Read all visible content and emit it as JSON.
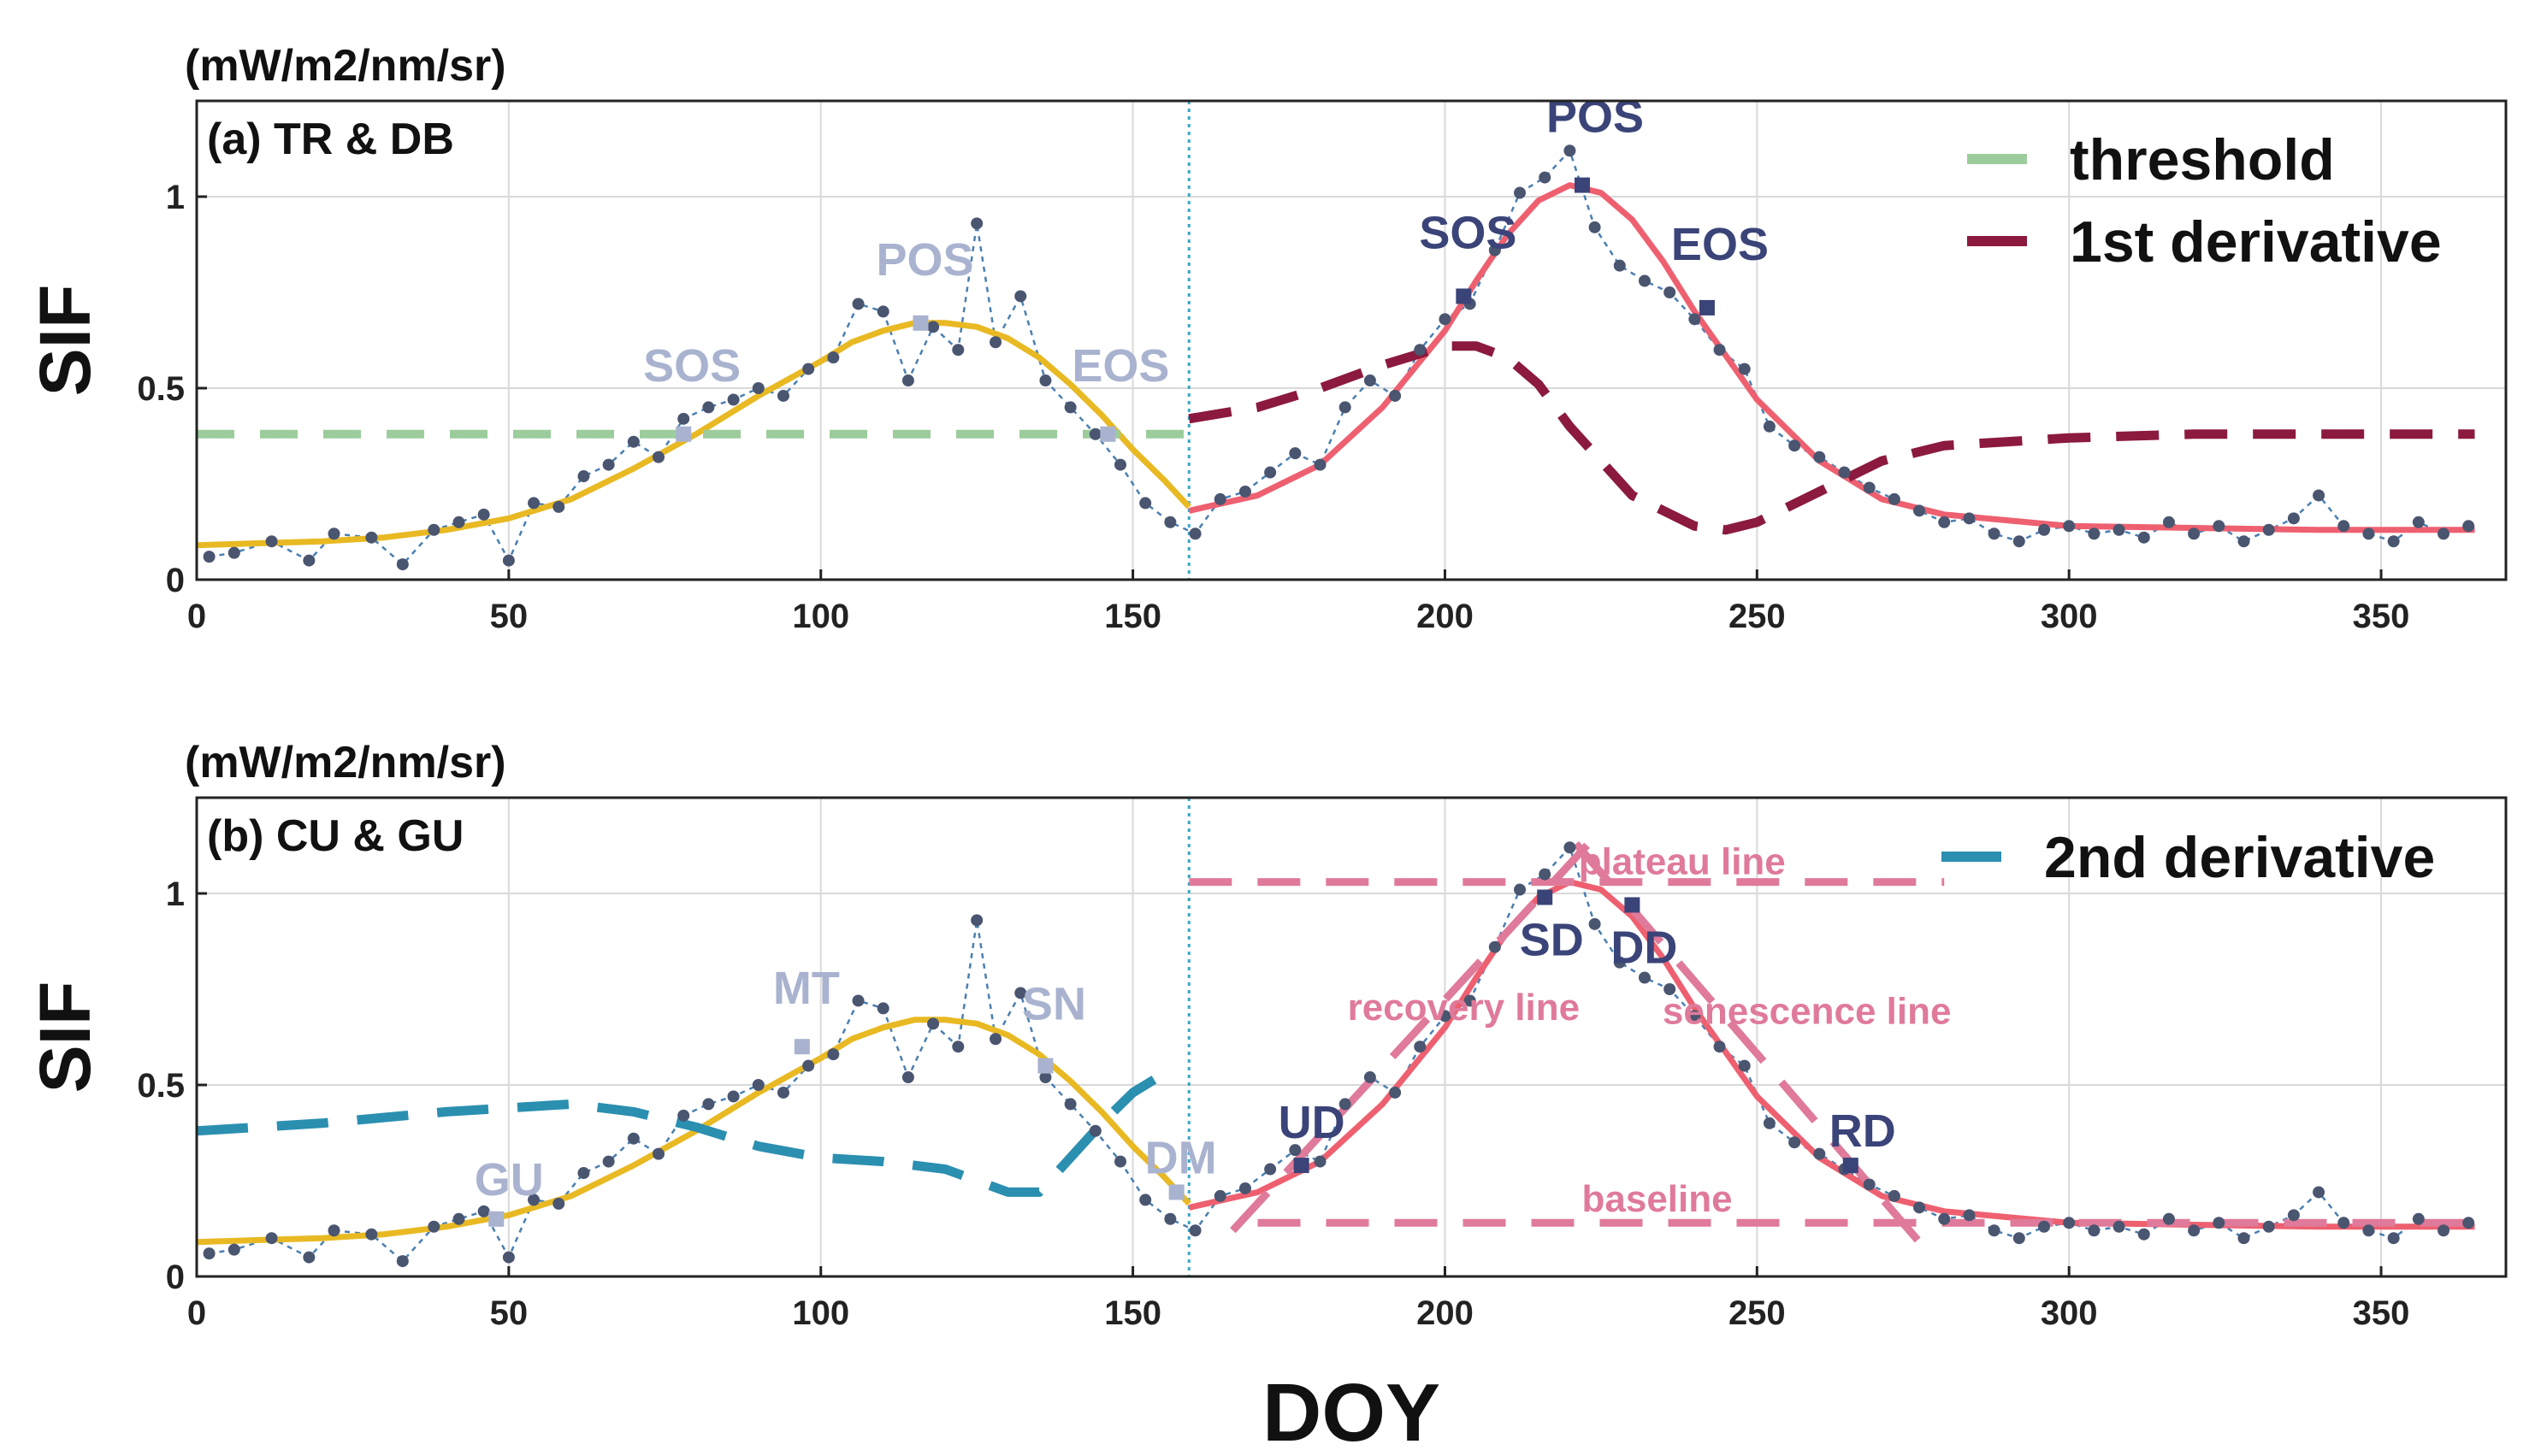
{
  "chart_data": [
    {
      "type": "line",
      "panel_label": "(a) TR & DB",
      "unit_label": "(mW/m2/nm/sr)",
      "ylabel": "SIF",
      "xlabel": "",
      "xlim": [
        0,
        370
      ],
      "ylim": [
        0,
        1.25
      ],
      "xticks": [
        0,
        50,
        100,
        150,
        200,
        250,
        300,
        350
      ],
      "yticks": [
        0,
        0.5,
        1
      ],
      "ytick_labels": [
        "0",
        "0.5",
        "1"
      ],
      "divider_x": 159,
      "legend": [
        {
          "label": "threshold",
          "color": "#9ccc9c",
          "style": "dashed"
        },
        {
          "label": "1st derivative",
          "color": "#8b1a3e",
          "style": "dashed"
        }
      ],
      "series": [
        {
          "name": "fit-season1",
          "color": "#e8b923",
          "x": [
            0,
            10,
            20,
            30,
            40,
            50,
            60,
            70,
            80,
            90,
            100,
            105,
            110,
            115,
            120,
            125,
            130,
            135,
            140,
            145,
            150,
            155,
            159
          ],
          "y": [
            0.09,
            0.095,
            0.1,
            0.11,
            0.13,
            0.16,
            0.21,
            0.29,
            0.38,
            0.48,
            0.57,
            0.62,
            0.65,
            0.67,
            0.67,
            0.66,
            0.63,
            0.58,
            0.51,
            0.43,
            0.34,
            0.26,
            0.19
          ]
        },
        {
          "name": "fit-season2",
          "color": "#ee6070",
          "x": [
            159,
            170,
            180,
            190,
            200,
            205,
            210,
            215,
            220,
            225,
            230,
            235,
            240,
            250,
            260,
            270,
            280,
            300,
            320,
            340,
            360,
            365
          ],
          "y": [
            0.18,
            0.22,
            0.3,
            0.45,
            0.65,
            0.78,
            0.9,
            0.99,
            1.03,
            1.01,
            0.94,
            0.83,
            0.7,
            0.47,
            0.31,
            0.21,
            0.17,
            0.14,
            0.135,
            0.13,
            0.13,
            0.13
          ]
        },
        {
          "name": "threshold",
          "color": "#9ccc9c",
          "x": [
            0,
            159
          ],
          "y": [
            0.38,
            0.38
          ]
        },
        {
          "name": "1st derivative",
          "color": "#8b1a3e",
          "x": [
            159,
            170,
            180,
            190,
            200,
            205,
            210,
            215,
            220,
            230,
            240,
            245,
            250,
            260,
            270,
            280,
            300,
            320,
            340,
            360,
            365
          ],
          "y": [
            0.42,
            0.45,
            0.5,
            0.56,
            0.61,
            0.61,
            0.58,
            0.51,
            0.4,
            0.22,
            0.14,
            0.13,
            0.15,
            0.23,
            0.31,
            0.35,
            0.37,
            0.38,
            0.38,
            0.38,
            0.38
          ]
        }
      ],
      "observed": {
        "x": [
          2,
          6,
          12,
          18,
          22,
          28,
          33,
          38,
          42,
          46,
          50,
          54,
          58,
          62,
          66,
          70,
          74,
          78,
          82,
          86,
          90,
          94,
          98,
          102,
          106,
          110,
          114,
          118,
          122,
          125,
          128,
          132,
          136,
          140,
          144,
          148,
          152,
          156,
          160,
          164,
          168,
          172,
          176,
          180,
          184,
          188,
          192,
          196,
          200,
          204,
          208,
          212,
          216,
          220,
          224,
          228,
          232,
          236,
          240,
          244,
          248,
          252,
          256,
          260,
          264,
          268,
          272,
          276,
          280,
          284,
          288,
          292,
          296,
          300,
          304,
          308,
          312,
          316,
          320,
          324,
          328,
          332,
          336,
          340,
          344,
          348,
          352,
          356,
          360,
          364
        ],
        "y": [
          0.06,
          0.07,
          0.1,
          0.05,
          0.12,
          0.11,
          0.04,
          0.13,
          0.15,
          0.17,
          0.05,
          0.2,
          0.19,
          0.27,
          0.3,
          0.36,
          0.32,
          0.42,
          0.45,
          0.47,
          0.5,
          0.48,
          0.55,
          0.58,
          0.72,
          0.7,
          0.52,
          0.66,
          0.6,
          0.93,
          0.62,
          0.74,
          0.52,
          0.45,
          0.38,
          0.3,
          0.2,
          0.15,
          0.12,
          0.21,
          0.23,
          0.28,
          0.33,
          0.3,
          0.45,
          0.52,
          0.48,
          0.6,
          0.68,
          0.72,
          0.86,
          1.01,
          1.05,
          1.12,
          0.92,
          0.82,
          0.78,
          0.75,
          0.68,
          0.6,
          0.55,
          0.4,
          0.35,
          0.32,
          0.28,
          0.24,
          0.21,
          0.18,
          0.15,
          0.16,
          0.12,
          0.1,
          0.13,
          0.14,
          0.12,
          0.13,
          0.11,
          0.15,
          0.12,
          0.14,
          0.1,
          0.13,
          0.16,
          0.22,
          0.14,
          0.12,
          0.1,
          0.15,
          0.12,
          0.14
        ]
      },
      "markers": [
        {
          "label": "SOS",
          "x": 78,
          "y": 0.38,
          "color": "#a9b3cf"
        },
        {
          "label": "POS",
          "x": 116,
          "y": 0.67,
          "color": "#a9b3cf"
        },
        {
          "label": "EOS",
          "x": 146,
          "y": 0.38,
          "color": "#a9b3cf"
        },
        {
          "label": "SOS",
          "x": 203,
          "y": 0.74,
          "color": "#3b4478"
        },
        {
          "label": "POS",
          "x": 222,
          "y": 1.03,
          "color": "#3b4478"
        },
        {
          "label": "EOS",
          "x": 242,
          "y": 0.71,
          "color": "#3b4478"
        }
      ]
    },
    {
      "type": "line",
      "panel_label": "(b) CU & GU",
      "unit_label": "(mW/m2/nm/sr)",
      "ylabel": "SIF",
      "xlabel": "DOY",
      "xlim": [
        0,
        370
      ],
      "ylim": [
        0,
        1.25
      ],
      "xticks": [
        0,
        50,
        100,
        150,
        200,
        250,
        300,
        350
      ],
      "yticks": [
        0,
        0.5,
        1
      ],
      "ytick_labels": [
        "0",
        "0.5",
        "1"
      ],
      "divider_x": 159,
      "legend": [
        {
          "label": "2nd derivative",
          "color": "#2b8fb0",
          "style": "dashed"
        }
      ],
      "series": [
        {
          "name": "fit-season1",
          "color": "#e8b923",
          "x": [
            0,
            10,
            20,
            30,
            40,
            50,
            60,
            70,
            80,
            90,
            100,
            105,
            110,
            115,
            120,
            125,
            130,
            135,
            140,
            145,
            150,
            155,
            159
          ],
          "y": [
            0.09,
            0.095,
            0.1,
            0.11,
            0.13,
            0.16,
            0.21,
            0.29,
            0.38,
            0.48,
            0.57,
            0.62,
            0.65,
            0.67,
            0.67,
            0.66,
            0.63,
            0.58,
            0.51,
            0.43,
            0.34,
            0.26,
            0.19
          ]
        },
        {
          "name": "fit-season2",
          "color": "#ee6070",
          "x": [
            159,
            170,
            180,
            190,
            200,
            205,
            210,
            215,
            220,
            225,
            230,
            235,
            240,
            250,
            260,
            270,
            280,
            300,
            320,
            340,
            360,
            365
          ],
          "y": [
            0.18,
            0.22,
            0.3,
            0.45,
            0.65,
            0.78,
            0.9,
            0.99,
            1.03,
            1.01,
            0.94,
            0.83,
            0.7,
            0.47,
            0.31,
            0.21,
            0.17,
            0.14,
            0.135,
            0.13,
            0.13,
            0.13
          ]
        },
        {
          "name": "2nd derivative",
          "color": "#2b8fb0",
          "x": [
            0,
            20,
            40,
            60,
            70,
            80,
            90,
            100,
            110,
            120,
            130,
            135,
            140,
            145,
            150,
            155
          ],
          "y": [
            0.38,
            0.4,
            0.43,
            0.45,
            0.43,
            0.39,
            0.34,
            0.31,
            0.3,
            0.28,
            0.22,
            0.22,
            0.31,
            0.4,
            0.48,
            0.53
          ]
        },
        {
          "name": "plateau line",
          "color": "#e07a9a",
          "x": [
            159,
            280
          ],
          "y": [
            1.03,
            1.03
          ]
        },
        {
          "name": "baseline",
          "color": "#e07a9a",
          "x": [
            170,
            365
          ],
          "y": [
            0.14,
            0.14
          ]
        },
        {
          "name": "recovery line",
          "color": "#e07a9a",
          "x": [
            166,
            223
          ],
          "y": [
            0.12,
            1.13
          ]
        },
        {
          "name": "senescence line",
          "color": "#e07a9a",
          "x": [
            221,
            276
          ],
          "y": [
            1.13,
            0.09
          ]
        }
      ],
      "observed": {
        "x": [
          2,
          6,
          12,
          18,
          22,
          28,
          33,
          38,
          42,
          46,
          50,
          54,
          58,
          62,
          66,
          70,
          74,
          78,
          82,
          86,
          90,
          94,
          98,
          102,
          106,
          110,
          114,
          118,
          122,
          125,
          128,
          132,
          136,
          140,
          144,
          148,
          152,
          156,
          160,
          164,
          168,
          172,
          176,
          180,
          184,
          188,
          192,
          196,
          200,
          204,
          208,
          212,
          216,
          220,
          224,
          228,
          232,
          236,
          240,
          244,
          248,
          252,
          256,
          260,
          264,
          268,
          272,
          276,
          280,
          284,
          288,
          292,
          296,
          300,
          304,
          308,
          312,
          316,
          320,
          324,
          328,
          332,
          336,
          340,
          344,
          348,
          352,
          356,
          360,
          364
        ],
        "y": [
          0.06,
          0.07,
          0.1,
          0.05,
          0.12,
          0.11,
          0.04,
          0.13,
          0.15,
          0.17,
          0.05,
          0.2,
          0.19,
          0.27,
          0.3,
          0.36,
          0.32,
          0.42,
          0.45,
          0.47,
          0.5,
          0.48,
          0.55,
          0.58,
          0.72,
          0.7,
          0.52,
          0.66,
          0.6,
          0.93,
          0.62,
          0.74,
          0.52,
          0.45,
          0.38,
          0.3,
          0.2,
          0.15,
          0.12,
          0.21,
          0.23,
          0.28,
          0.33,
          0.3,
          0.45,
          0.52,
          0.48,
          0.6,
          0.68,
          0.72,
          0.86,
          1.01,
          1.05,
          1.12,
          0.92,
          0.82,
          0.78,
          0.75,
          0.68,
          0.6,
          0.55,
          0.4,
          0.35,
          0.32,
          0.28,
          0.24,
          0.21,
          0.18,
          0.15,
          0.16,
          0.12,
          0.1,
          0.13,
          0.14,
          0.12,
          0.13,
          0.11,
          0.15,
          0.12,
          0.14,
          0.1,
          0.13,
          0.16,
          0.22,
          0.14,
          0.12,
          0.1,
          0.15,
          0.12,
          0.14
        ]
      },
      "markers": [
        {
          "label": "GU",
          "x": 48,
          "y": 0.15,
          "color": "#a9b3cf"
        },
        {
          "label": "MT",
          "x": 97,
          "y": 0.6,
          "color": "#a9b3cf"
        },
        {
          "label": "SN",
          "x": 136,
          "y": 0.55,
          "color": "#a9b3cf"
        },
        {
          "label": "DM",
          "x": 157,
          "y": 0.22,
          "color": "#a9b3cf"
        },
        {
          "label": "UD",
          "x": 177,
          "y": 0.29,
          "color": "#3b4478"
        },
        {
          "label": "SD",
          "x": 216,
          "y": 0.99,
          "color": "#3b4478"
        },
        {
          "label": "DD",
          "x": 230,
          "y": 0.97,
          "color": "#3b4478"
        },
        {
          "label": "RD",
          "x": 265,
          "y": 0.29,
          "color": "#3b4478"
        }
      ],
      "line_labels": [
        {
          "label": "plateau line",
          "x": 238,
          "y": 1.05
        },
        {
          "label": "recovery line",
          "x": 203,
          "y": 0.67
        },
        {
          "label": "senescence line",
          "x": 258,
          "y": 0.66
        },
        {
          "label": "baseline",
          "x": 234,
          "y": 0.17
        }
      ]
    }
  ]
}
